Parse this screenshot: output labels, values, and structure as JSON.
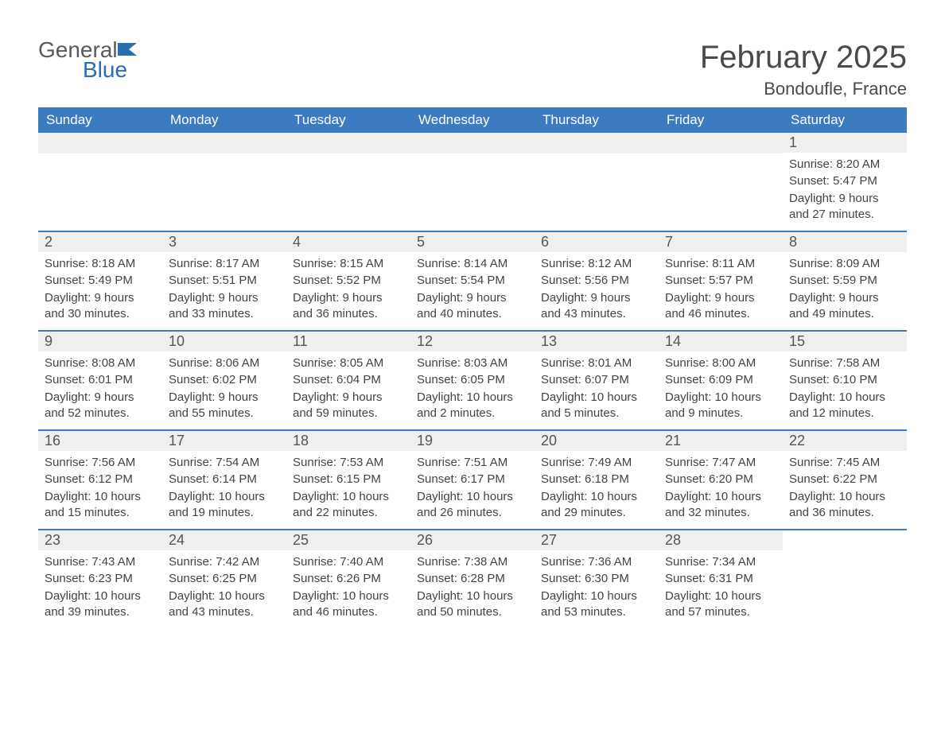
{
  "brand": {
    "general": "General",
    "blue": "Blue",
    "accent": "#2a6db3"
  },
  "title": "February 2025",
  "location": "Bondoufle, France",
  "dows": [
    "Sunday",
    "Monday",
    "Tuesday",
    "Wednesday",
    "Thursday",
    "Friday",
    "Saturday"
  ],
  "table": {
    "header_bg": "#3c7bbf",
    "header_fg": "#ffffff",
    "row_divider": "#3c7bbf",
    "day_bar_bg": "#efefef",
    "text_color": "#444444",
    "font_size_body": 15,
    "font_size_daynum": 18
  },
  "weeks": [
    [
      null,
      null,
      null,
      null,
      null,
      null,
      {
        "n": "1",
        "sunrise": "Sunrise: 8:20 AM",
        "sunset": "Sunset: 5:47 PM",
        "day": "Daylight: 9 hours and 27 minutes."
      }
    ],
    [
      {
        "n": "2",
        "sunrise": "Sunrise: 8:18 AM",
        "sunset": "Sunset: 5:49 PM",
        "day": "Daylight: 9 hours and 30 minutes."
      },
      {
        "n": "3",
        "sunrise": "Sunrise: 8:17 AM",
        "sunset": "Sunset: 5:51 PM",
        "day": "Daylight: 9 hours and 33 minutes."
      },
      {
        "n": "4",
        "sunrise": "Sunrise: 8:15 AM",
        "sunset": "Sunset: 5:52 PM",
        "day": "Daylight: 9 hours and 36 minutes."
      },
      {
        "n": "5",
        "sunrise": "Sunrise: 8:14 AM",
        "sunset": "Sunset: 5:54 PM",
        "day": "Daylight: 9 hours and 40 minutes."
      },
      {
        "n": "6",
        "sunrise": "Sunrise: 8:12 AM",
        "sunset": "Sunset: 5:56 PM",
        "day": "Daylight: 9 hours and 43 minutes."
      },
      {
        "n": "7",
        "sunrise": "Sunrise: 8:11 AM",
        "sunset": "Sunset: 5:57 PM",
        "day": "Daylight: 9 hours and 46 minutes."
      },
      {
        "n": "8",
        "sunrise": "Sunrise: 8:09 AM",
        "sunset": "Sunset: 5:59 PM",
        "day": "Daylight: 9 hours and 49 minutes."
      }
    ],
    [
      {
        "n": "9",
        "sunrise": "Sunrise: 8:08 AM",
        "sunset": "Sunset: 6:01 PM",
        "day": "Daylight: 9 hours and 52 minutes."
      },
      {
        "n": "10",
        "sunrise": "Sunrise: 8:06 AM",
        "sunset": "Sunset: 6:02 PM",
        "day": "Daylight: 9 hours and 55 minutes."
      },
      {
        "n": "11",
        "sunrise": "Sunrise: 8:05 AM",
        "sunset": "Sunset: 6:04 PM",
        "day": "Daylight: 9 hours and 59 minutes."
      },
      {
        "n": "12",
        "sunrise": "Sunrise: 8:03 AM",
        "sunset": "Sunset: 6:05 PM",
        "day": "Daylight: 10 hours and 2 minutes."
      },
      {
        "n": "13",
        "sunrise": "Sunrise: 8:01 AM",
        "sunset": "Sunset: 6:07 PM",
        "day": "Daylight: 10 hours and 5 minutes."
      },
      {
        "n": "14",
        "sunrise": "Sunrise: 8:00 AM",
        "sunset": "Sunset: 6:09 PM",
        "day": "Daylight: 10 hours and 9 minutes."
      },
      {
        "n": "15",
        "sunrise": "Sunrise: 7:58 AM",
        "sunset": "Sunset: 6:10 PM",
        "day": "Daylight: 10 hours and 12 minutes."
      }
    ],
    [
      {
        "n": "16",
        "sunrise": "Sunrise: 7:56 AM",
        "sunset": "Sunset: 6:12 PM",
        "day": "Daylight: 10 hours and 15 minutes."
      },
      {
        "n": "17",
        "sunrise": "Sunrise: 7:54 AM",
        "sunset": "Sunset: 6:14 PM",
        "day": "Daylight: 10 hours and 19 minutes."
      },
      {
        "n": "18",
        "sunrise": "Sunrise: 7:53 AM",
        "sunset": "Sunset: 6:15 PM",
        "day": "Daylight: 10 hours and 22 minutes."
      },
      {
        "n": "19",
        "sunrise": "Sunrise: 7:51 AM",
        "sunset": "Sunset: 6:17 PM",
        "day": "Daylight: 10 hours and 26 minutes."
      },
      {
        "n": "20",
        "sunrise": "Sunrise: 7:49 AM",
        "sunset": "Sunset: 6:18 PM",
        "day": "Daylight: 10 hours and 29 minutes."
      },
      {
        "n": "21",
        "sunrise": "Sunrise: 7:47 AM",
        "sunset": "Sunset: 6:20 PM",
        "day": "Daylight: 10 hours and 32 minutes."
      },
      {
        "n": "22",
        "sunrise": "Sunrise: 7:45 AM",
        "sunset": "Sunset: 6:22 PM",
        "day": "Daylight: 10 hours and 36 minutes."
      }
    ],
    [
      {
        "n": "23",
        "sunrise": "Sunrise: 7:43 AM",
        "sunset": "Sunset: 6:23 PM",
        "day": "Daylight: 10 hours and 39 minutes."
      },
      {
        "n": "24",
        "sunrise": "Sunrise: 7:42 AM",
        "sunset": "Sunset: 6:25 PM",
        "day": "Daylight: 10 hours and 43 minutes."
      },
      {
        "n": "25",
        "sunrise": "Sunrise: 7:40 AM",
        "sunset": "Sunset: 6:26 PM",
        "day": "Daylight: 10 hours and 46 minutes."
      },
      {
        "n": "26",
        "sunrise": "Sunrise: 7:38 AM",
        "sunset": "Sunset: 6:28 PM",
        "day": "Daylight: 10 hours and 50 minutes."
      },
      {
        "n": "27",
        "sunrise": "Sunrise: 7:36 AM",
        "sunset": "Sunset: 6:30 PM",
        "day": "Daylight: 10 hours and 53 minutes."
      },
      {
        "n": "28",
        "sunrise": "Sunrise: 7:34 AM",
        "sunset": "Sunset: 6:31 PM",
        "day": "Daylight: 10 hours and 57 minutes."
      },
      null
    ]
  ]
}
